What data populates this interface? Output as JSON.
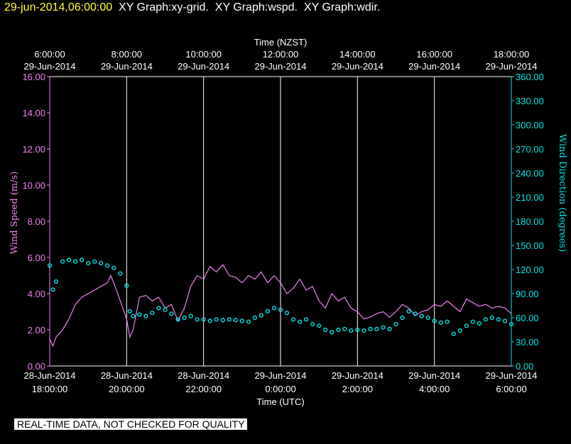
{
  "header": {
    "timestamp": "29-jun-2014,06:00:00",
    "graphs": [
      "XY Graph:xy-grid.",
      "XY Graph:wspd.",
      "XY Graph:wdir."
    ]
  },
  "banner": "REAL-TIME DATA, NOT CHECKED FOR QUALITY",
  "colors": {
    "background": "#000000",
    "wind_speed": "#ee82ee",
    "wind_direction": "#00e5e5",
    "frame": "#ffffff",
    "header_stamp": "#ffff33"
  },
  "chart_data": {
    "type": "line",
    "top_axis": {
      "label": "Time (NZST)",
      "ticks": [
        {
          "time": "6:00:00",
          "date": "29-Jun-2014"
        },
        {
          "time": "8:00:00",
          "date": "29-Jun-2014"
        },
        {
          "time": "10:00:00",
          "date": "29-Jun-2014"
        },
        {
          "time": "12:00:00",
          "date": "29-Jun-2014"
        },
        {
          "time": "14:00:00",
          "date": "29-Jun-2014"
        },
        {
          "time": "16:00:00",
          "date": "29-Jun-2014"
        },
        {
          "time": "18:00:00",
          "date": "29-Jun-2014"
        }
      ]
    },
    "bottom_axis": {
      "label": "Time (UTC)",
      "range": [
        "2014-06-28 18:00",
        "2014-06-29 06:00"
      ],
      "ticks": [
        {
          "date": "28-Jun-2014",
          "time": "18:00:00"
        },
        {
          "date": "28-Jun-2014",
          "time": "20:00:00"
        },
        {
          "date": "28-Jun-2014",
          "time": "22:00:00"
        },
        {
          "date": "29-Jun-2014",
          "time": "0:00:00"
        },
        {
          "date": "29-Jun-2014",
          "time": "2:00:00"
        },
        {
          "date": "29-Jun-2014",
          "time": "4:00:00"
        },
        {
          "date": "29-Jun-2014",
          "time": "6:00:00"
        }
      ]
    },
    "grid": "vertical",
    "left_axis": {
      "label": "Wind Speed (m/s)",
      "range": [
        0,
        16
      ],
      "ticks": [
        "0.00",
        "2.00",
        "4.00",
        "6.00",
        "8.00",
        "10.00",
        "12.00",
        "14.00",
        "16.00"
      ]
    },
    "right_axis": {
      "label": "Wind Direction (degrees)",
      "range": [
        0,
        360
      ],
      "ticks": [
        "0.00",
        "30.00",
        "60.00",
        "90.00",
        "120.00",
        "150.00",
        "180.00",
        "210.00",
        "240.00",
        "270.00",
        "300.00",
        "330.00",
        "360.00"
      ]
    },
    "series": [
      {
        "type": "line",
        "axis": "left",
        "x": [
          "2014-06-28 18:00",
          "2014-06-28 18:05",
          "2014-06-28 18:10",
          "2014-06-28 18:20",
          "2014-06-28 18:30",
          "2014-06-28 18:40",
          "2014-06-28 18:50",
          "2014-06-28 19:00",
          "2014-06-28 19:10",
          "2014-06-28 19:20",
          "2014-06-28 19:30",
          "2014-06-28 19:35",
          "2014-06-28 19:40",
          "2014-06-28 19:45",
          "2014-06-28 19:50",
          "2014-06-28 20:00",
          "2014-06-28 20:05",
          "2014-06-28 20:10",
          "2014-06-28 20:20",
          "2014-06-28 20:30",
          "2014-06-28 20:40",
          "2014-06-28 20:50",
          "2014-06-28 21:00",
          "2014-06-28 21:10",
          "2014-06-28 21:20",
          "2014-06-28 21:30",
          "2014-06-28 21:40",
          "2014-06-28 21:50",
          "2014-06-28 22:00",
          "2014-06-28 22:10",
          "2014-06-28 22:20",
          "2014-06-28 22:30",
          "2014-06-28 22:40",
          "2014-06-28 22:50",
          "2014-06-28 23:00",
          "2014-06-28 23:10",
          "2014-06-28 23:20",
          "2014-06-28 23:30",
          "2014-06-28 23:40",
          "2014-06-28 23:50",
          "2014-06-29 00:00",
          "2014-06-29 00:10",
          "2014-06-29 00:20",
          "2014-06-29 00:30",
          "2014-06-29 00:40",
          "2014-06-29 00:50",
          "2014-06-29 01:00",
          "2014-06-29 01:10",
          "2014-06-29 01:20",
          "2014-06-29 01:30",
          "2014-06-29 01:40",
          "2014-06-29 01:50",
          "2014-06-29 02:00",
          "2014-06-29 02:10",
          "2014-06-29 02:20",
          "2014-06-29 02:30",
          "2014-06-29 02:40",
          "2014-06-29 02:50",
          "2014-06-29 03:00",
          "2014-06-29 03:10",
          "2014-06-29 03:20",
          "2014-06-29 03:30",
          "2014-06-29 03:40",
          "2014-06-29 03:50",
          "2014-06-29 04:00",
          "2014-06-29 04:10",
          "2014-06-29 04:20",
          "2014-06-29 04:30",
          "2014-06-29 04:40",
          "2014-06-29 04:50",
          "2014-06-29 05:00",
          "2014-06-29 05:10",
          "2014-06-29 05:20",
          "2014-06-29 05:30",
          "2014-06-29 05:40",
          "2014-06-29 05:50",
          "2014-06-29 06:00"
        ],
        "y": [
          1.5,
          1.1,
          1.6,
          2.0,
          2.6,
          3.4,
          3.8,
          4.0,
          4.2,
          4.4,
          4.6,
          5.0,
          4.6,
          4.1,
          3.6,
          2.6,
          1.6,
          2.0,
          3.8,
          3.9,
          3.6,
          3.8,
          3.2,
          3.4,
          2.5,
          3.2,
          4.4,
          5.0,
          4.8,
          5.5,
          5.2,
          5.6,
          5.0,
          4.9,
          4.6,
          5.0,
          4.8,
          5.2,
          4.6,
          5.0,
          4.6,
          4.0,
          4.3,
          4.8,
          4.2,
          4.4,
          3.6,
          3.2,
          4.0,
          3.6,
          3.8,
          3.2,
          3.0,
          2.6,
          2.7,
          2.9,
          3.0,
          2.7,
          3.0,
          3.4,
          3.2,
          2.8,
          3.0,
          3.1,
          3.4,
          3.3,
          3.6,
          3.3,
          3.0,
          3.7,
          3.5,
          3.3,
          3.4,
          3.2,
          3.3,
          3.2,
          2.9
        ]
      },
      {
        "type": "scatter",
        "axis": "right",
        "x": [
          "2014-06-28 18:00",
          "2014-06-28 18:05",
          "2014-06-28 18:10",
          "2014-06-28 18:20",
          "2014-06-28 18:30",
          "2014-06-28 18:40",
          "2014-06-28 18:50",
          "2014-06-28 19:00",
          "2014-06-28 19:10",
          "2014-06-28 19:20",
          "2014-06-28 19:30",
          "2014-06-28 19:40",
          "2014-06-28 19:50",
          "2014-06-28 20:00",
          "2014-06-28 20:05",
          "2014-06-28 20:10",
          "2014-06-28 20:20",
          "2014-06-28 20:30",
          "2014-06-28 20:40",
          "2014-06-28 20:50",
          "2014-06-28 21:00",
          "2014-06-28 21:10",
          "2014-06-28 21:20",
          "2014-06-28 21:30",
          "2014-06-28 21:40",
          "2014-06-28 21:50",
          "2014-06-28 22:00",
          "2014-06-28 22:10",
          "2014-06-28 22:20",
          "2014-06-28 22:30",
          "2014-06-28 22:40",
          "2014-06-28 22:50",
          "2014-06-28 23:00",
          "2014-06-28 23:10",
          "2014-06-28 23:20",
          "2014-06-28 23:30",
          "2014-06-28 23:40",
          "2014-06-28 23:50",
          "2014-06-29 00:00",
          "2014-06-29 00:10",
          "2014-06-29 00:20",
          "2014-06-29 00:30",
          "2014-06-29 00:40",
          "2014-06-29 00:50",
          "2014-06-29 01:00",
          "2014-06-29 01:10",
          "2014-06-29 01:20",
          "2014-06-29 01:30",
          "2014-06-29 01:40",
          "2014-06-29 01:50",
          "2014-06-29 02:00",
          "2014-06-29 02:10",
          "2014-06-29 02:20",
          "2014-06-29 02:30",
          "2014-06-29 02:40",
          "2014-06-29 02:50",
          "2014-06-29 03:00",
          "2014-06-29 03:10",
          "2014-06-29 03:20",
          "2014-06-29 03:30",
          "2014-06-29 03:40",
          "2014-06-29 03:50",
          "2014-06-29 04:00",
          "2014-06-29 04:10",
          "2014-06-29 04:20",
          "2014-06-29 04:30",
          "2014-06-29 04:40",
          "2014-06-29 04:50",
          "2014-06-29 05:00",
          "2014-06-29 05:10",
          "2014-06-29 05:20",
          "2014-06-29 05:30",
          "2014-06-29 05:40",
          "2014-06-29 05:50",
          "2014-06-29 06:00"
        ],
        "y": [
          125,
          95,
          105,
          130,
          132,
          130,
          132,
          128,
          130,
          128,
          125,
          122,
          115,
          100,
          68,
          62,
          64,
          62,
          66,
          72,
          70,
          65,
          58,
          60,
          62,
          58,
          58,
          56,
          58,
          57,
          58,
          57,
          56,
          55,
          60,
          63,
          68,
          72,
          70,
          66,
          58,
          55,
          58,
          52,
          50,
          45,
          42,
          45,
          46,
          44,
          45,
          44,
          46,
          46,
          48,
          46,
          52,
          60,
          68,
          65,
          62,
          60,
          56,
          54,
          55,
          40,
          44,
          50,
          55,
          53,
          58,
          60,
          58,
          56,
          52
        ]
      }
    ]
  }
}
